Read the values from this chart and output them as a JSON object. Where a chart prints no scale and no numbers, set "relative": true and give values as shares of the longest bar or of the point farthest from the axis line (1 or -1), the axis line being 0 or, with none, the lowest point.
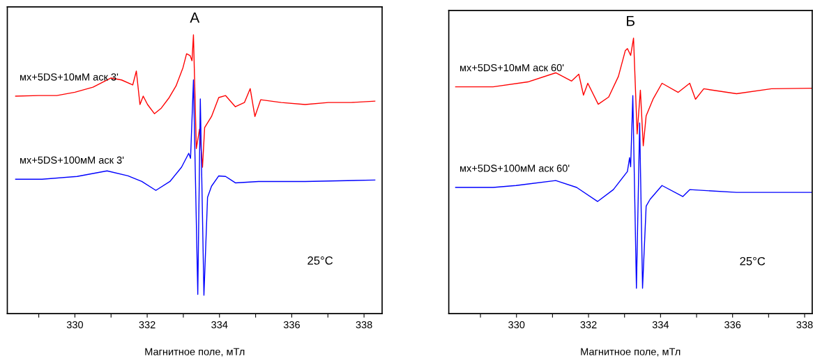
{
  "chart_data": [
    {
      "type": "line",
      "title": "А",
      "xlabel": "Магнитное поле, мТл",
      "relative": true,
      "xlim": [
        328.13,
        338.5
      ],
      "xticks": [
        {
          "value": 329,
          "label": null
        },
        330,
        {
          "value": 331,
          "label": null
        },
        332,
        {
          "value": 333,
          "label": null
        },
        334,
        {
          "value": 335,
          "label": null
        },
        336,
        {
          "value": 337,
          "label": null
        },
        338
      ],
      "grid": false,
      "legend": false,
      "tick_labels": "x",
      "annotations": [
        "25°C"
      ],
      "series": [
        {
          "name": "мх+5DS+10мМ аск 3'",
          "color": "#ff0000",
          "x": [
            328.36,
            329.0,
            329.5,
            330.0,
            330.5,
            331.0,
            331.29,
            331.6,
            331.7,
            331.8,
            331.89,
            332.01,
            332.2,
            332.39,
            332.61,
            332.8,
            332.99,
            333.09,
            333.19,
            333.24,
            333.28,
            333.36,
            333.45,
            333.53,
            333.59,
            333.78,
            333.98,
            334.17,
            334.44,
            334.69,
            334.85,
            334.98,
            335.14,
            335.71,
            336.37,
            337.01,
            337.64,
            338.3
          ],
          "values": [
            0.78,
            0.782,
            0.782,
            0.794,
            0.812,
            0.845,
            0.838,
            0.82,
            0.87,
            0.75,
            0.78,
            0.75,
            0.717,
            0.737,
            0.775,
            0.817,
            0.882,
            0.932,
            0.925,
            0.907,
            1.0,
            0.592,
            0.662,
            0.525,
            0.667,
            0.707,
            0.775,
            0.782,
            0.742,
            0.757,
            0.807,
            0.707,
            0.767,
            0.757,
            0.75,
            0.757,
            0.757,
            0.762
          ]
        },
        {
          "name": "мх+5DS+100мМ аск 3'",
          "color": "#0000ff",
          "x": [
            328.36,
            329.09,
            330.06,
            330.89,
            331.47,
            331.85,
            332.24,
            332.63,
            332.95,
            333.15,
            333.2,
            333.28,
            333.4,
            333.47,
            333.57,
            333.67,
            333.78,
            333.98,
            334.17,
            334.44,
            335.08,
            336.37,
            338.3
          ],
          "values": [
            0.482,
            0.482,
            0.492,
            0.512,
            0.494,
            0.474,
            0.442,
            0.474,
            0.525,
            0.575,
            0.557,
            0.838,
            0.069,
            0.77,
            0.066,
            0.417,
            0.457,
            0.494,
            0.492,
            0.469,
            0.474,
            0.474,
            0.479
          ]
        }
      ]
    },
    {
      "type": "line",
      "title": "Б",
      "xlabel": "Магнитное поле, мТл",
      "relative": true,
      "xlim": [
        328.12,
        338.21
      ],
      "xticks": [
        {
          "value": 329,
          "label": null
        },
        330,
        {
          "value": 331,
          "label": null
        },
        332,
        {
          "value": 333,
          "label": null
        },
        334,
        {
          "value": 335,
          "label": null
        },
        336,
        {
          "value": 337,
          "label": null
        },
        338
      ],
      "grid": false,
      "legend": false,
      "tick_labels": "x",
      "annotations": [
        "25°C"
      ],
      "series": [
        {
          "name": "мх+5DS+10мМ аск 60'",
          "color": "#ff0000",
          "x": [
            328.31,
            329.35,
            330.32,
            331.09,
            331.53,
            331.73,
            331.86,
            331.98,
            332.27,
            332.56,
            332.83,
            333.02,
            333.08,
            333.17,
            333.25,
            333.35,
            333.44,
            333.52,
            333.6,
            333.79,
            334.04,
            334.49,
            334.81,
            334.97,
            335.2,
            336.11,
            337.08,
            338.19
          ],
          "values": [
            0.823,
            0.823,
            0.841,
            0.874,
            0.844,
            0.869,
            0.793,
            0.836,
            0.76,
            0.786,
            0.861,
            0.954,
            0.962,
            0.937,
            1.0,
            0.652,
            0.811,
            0.609,
            0.718,
            0.778,
            0.836,
            0.803,
            0.836,
            0.778,
            0.816,
            0.798,
            0.816,
            0.818
          ]
        },
        {
          "name": "мх+5DS+100мМ аск 60'",
          "color": "#0000ff",
          "x": [
            328.31,
            329.35,
            329.99,
            331.09,
            331.67,
            332.25,
            332.69,
            333.08,
            333.14,
            333.17,
            333.23,
            333.33,
            333.42,
            333.5,
            333.6,
            333.71,
            334.04,
            334.62,
            334.81,
            336.11,
            338.19
          ],
          "values": [
            0.458,
            0.458,
            0.465,
            0.483,
            0.458,
            0.407,
            0.45,
            0.516,
            0.566,
            0.533,
            0.791,
            0.092,
            0.692,
            0.092,
            0.39,
            0.415,
            0.465,
            0.425,
            0.45,
            0.44,
            0.44
          ]
        }
      ]
    }
  ]
}
